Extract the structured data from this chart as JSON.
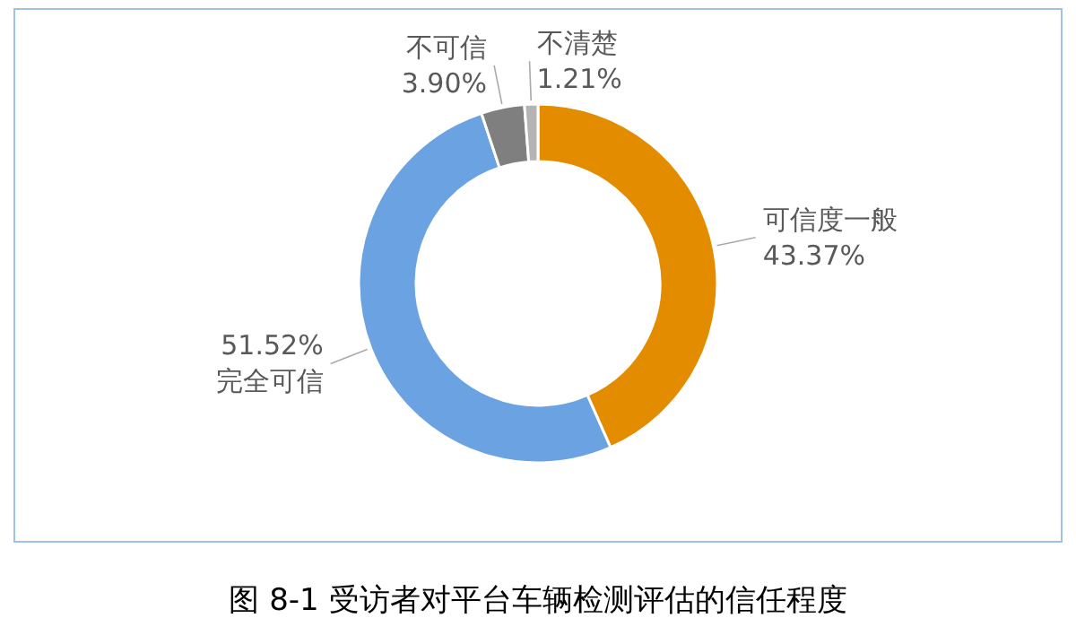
{
  "chart_data": {
    "type": "donut",
    "title": "图 8-1 受访者对平台车辆检测评估的信任程度",
    "categories": [
      "可信度一般",
      "完全可信",
      "不可信",
      "不清楚"
    ],
    "values": [
      43.37,
      51.52,
      3.9,
      1.21
    ],
    "colors": [
      "#e38c00",
      "#6aa2e2",
      "#7f7f7f",
      "#b4b4b4"
    ],
    "value_labels": [
      "43.37%",
      "51.52%",
      "3.90%",
      "1.21%"
    ]
  }
}
